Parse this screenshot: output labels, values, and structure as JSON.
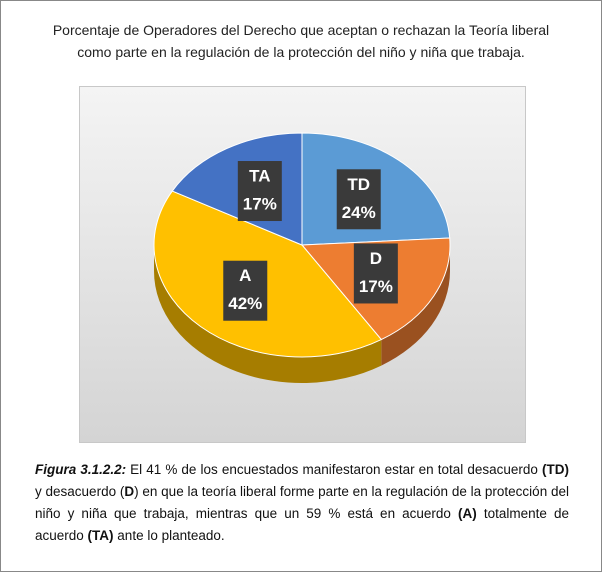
{
  "chart_data": {
    "type": "pie",
    "title": "Porcentaje de Operadores del Derecho que aceptan o rechazan  la Teoría liberal como parte en la regulación de la protección del niño y niña que trabaja.",
    "categories": [
      "TD",
      "D",
      "A",
      "TA"
    ],
    "values": [
      24,
      17,
      42,
      17
    ],
    "value_labels": [
      "24%",
      "17%",
      "42%",
      "17%"
    ],
    "colors": [
      "#5b9bd5",
      "#ed7d31",
      "#ffc000",
      "#4472c4"
    ]
  },
  "caption": {
    "segments": [
      {
        "text": "Figura 3.1.2.2:",
        "style": "bold-italic"
      },
      {
        "text": " El 41 % de los encuestados manifestaron estar en total desacuerdo ",
        "style": "normal"
      },
      {
        "text": "(TD)",
        "style": "bold"
      },
      {
        "text": " y desacuerdo (",
        "style": "normal"
      },
      {
        "text": "D",
        "style": "bold"
      },
      {
        "text": ") en que la teoría liberal forme parte en la regulación de la protección del niño y niña que trabaja, mientras que un 59 % está en acuerdo ",
        "style": "normal"
      },
      {
        "text": "(A)",
        "style": "bold"
      },
      {
        "text": " totalmente de acuerdo ",
        "style": "normal"
      },
      {
        "text": "(TA)",
        "style": "bold"
      },
      {
        "text": " ante lo planteado.",
        "style": "normal"
      }
    ]
  }
}
